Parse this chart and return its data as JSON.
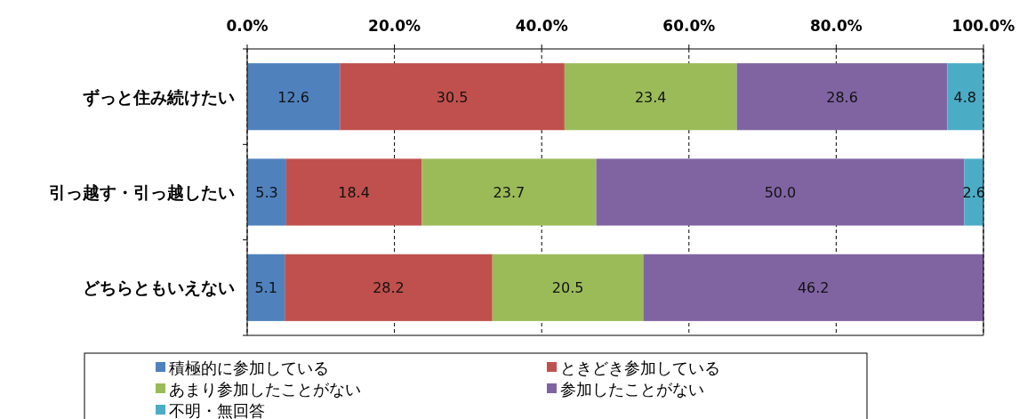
{
  "chart_data": {
    "type": "bar",
    "orientation": "horizontal",
    "stacked": true,
    "grid": "x",
    "legend": "bottom",
    "categories": [
      "ずっと住み続けたい",
      "引っ越す・引っ越したい",
      "どちらともいえない"
    ],
    "xlim": [
      0,
      100
    ],
    "xticks": [
      {
        "value": 0,
        "label": "0.0%"
      },
      {
        "value": 20,
        "label": "20.0%"
      },
      {
        "value": 40,
        "label": "40.0%"
      },
      {
        "value": 60,
        "label": "60.0%"
      },
      {
        "value": 80,
        "label": "80.0%"
      },
      {
        "value": 100,
        "label": "100.0%"
      }
    ],
    "series": [
      {
        "name": "積極的に参加している",
        "color": "#4f81bd",
        "values": [
          12.6,
          5.3,
          5.1
        ],
        "value_labels": [
          "12.6",
          "5.3",
          "5.1"
        ]
      },
      {
        "name": "ときどき参加している",
        "color": "#c0504d",
        "values": [
          30.5,
          18.4,
          28.2
        ],
        "value_labels": [
          "30.5",
          "18.4",
          "28.2"
        ]
      },
      {
        "name": "あまり参加したことがない",
        "color": "#9bbb59",
        "values": [
          23.4,
          23.7,
          20.5
        ],
        "value_labels": [
          "23.4",
          "23.7",
          "20.5"
        ]
      },
      {
        "name": "参加したことがない",
        "color": "#8064a2",
        "values": [
          28.6,
          50.0,
          46.2
        ],
        "value_labels": [
          "28.6",
          "50.0",
          "46.2"
        ]
      },
      {
        "name": "不明・無回答",
        "color": "#4bacc6",
        "values": [
          4.8,
          2.6,
          null
        ],
        "value_labels": [
          "4.8",
          "2.6",
          null
        ]
      }
    ]
  }
}
